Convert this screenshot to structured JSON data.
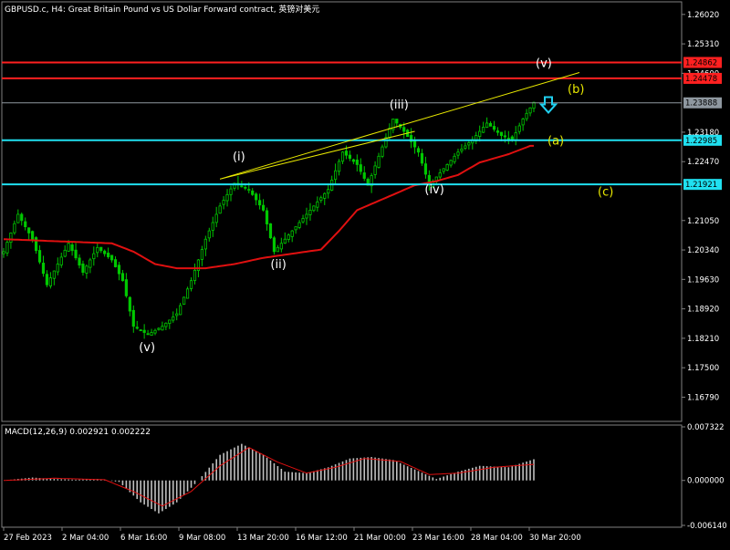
{
  "window": {
    "title": "GBPUSD.c, H4:  Great Britain Pound vs US Dollar Forward contract, 英镑对美元"
  },
  "colors": {
    "background": "#000000",
    "bull_candle": "#00c800",
    "bear_candle": "#00c800",
    "moving_average": "#e01010",
    "resistance_line": "#ff2020",
    "support_line": "#20e0f0",
    "current_price_line": "#8f98a0",
    "trendline": "#e8e800",
    "wave_white": "#ffffff",
    "wave_yellow": "#e8e800",
    "arrow": "#20d0f0",
    "macd_histogram": "#c0c0c0",
    "macd_signal": "#e01010",
    "axis_text": "#ffffff",
    "grid": "#2a2a2a"
  },
  "price_axis": {
    "labels": [
      "1.26020",
      "1.25310",
      "1.24600",
      "1.23180",
      "1.22470",
      "1.21050",
      "1.20340",
      "1.19630",
      "1.18920",
      "1.18210",
      "1.17500",
      "1.16790"
    ],
    "tags": [
      {
        "name": "resistance-upper-tag",
        "text": "1.24862",
        "price": 1.24862,
        "color": "#ff2020"
      },
      {
        "name": "resistance-lower-tag",
        "text": "1.24478",
        "price": 1.24478,
        "color": "#ff2020"
      },
      {
        "name": "current-price-tag",
        "text": "1.23888",
        "price": 1.23888,
        "color": "#8f98a0"
      },
      {
        "name": "support-upper-tag",
        "text": "1.22985",
        "price": 1.22985,
        "color": "#20e0f0"
      },
      {
        "name": "support-lower-tag",
        "text": "1.21921",
        "price": 1.21921,
        "color": "#20e0f0"
      }
    ],
    "min": 1.1625,
    "max": 1.2628
  },
  "time_axis": {
    "labels": [
      "27 Feb 2023",
      "2 Mar 04:00",
      "6 Mar 16:00",
      "9 Mar 08:00",
      "13 Mar 20:00",
      "16 Mar 12:00",
      "21 Mar 00:00",
      "23 Mar 16:00",
      "28 Mar 04:00",
      "30 Mar 20:00"
    ]
  },
  "macd": {
    "label": "MACD(12,26,9) 0.002921 0.002222",
    "axis_labels": [
      "0.007322",
      "0.000000",
      "-0.006140"
    ],
    "min": -0.00614,
    "max": 0.007322
  },
  "annotations": {
    "wave_labels": [
      {
        "text": "(v)",
        "kind": "white",
        "anchor": "low-start"
      },
      {
        "text": "(i)",
        "kind": "white",
        "anchor": "wave-i"
      },
      {
        "text": "(ii)",
        "kind": "white",
        "anchor": "wave-ii"
      },
      {
        "text": "(iii)",
        "kind": "white",
        "anchor": "wave-iii"
      },
      {
        "text": "(iv)",
        "kind": "white",
        "anchor": "wave-iv"
      },
      {
        "text": "(v)",
        "kind": "white",
        "anchor": "wave-v"
      },
      {
        "text": "(a)",
        "kind": "yellow",
        "anchor": "proj-a"
      },
      {
        "text": "(b)",
        "kind": "yellow",
        "anchor": "proj-b"
      },
      {
        "text": "(c)",
        "kind": "yellow",
        "anchor": "proj-c"
      }
    ]
  },
  "chart_data": {
    "type": "candlestick",
    "symbol": "GBPUSD.c",
    "timeframe": "H4",
    "key_prices": {
      "resistance_upper": 1.24862,
      "resistance_lower": 1.24478,
      "current": 1.23888,
      "support_upper": 1.22985,
      "support_lower": 1.21921
    },
    "price_path_pivots": [
      {
        "bar": 0,
        "price": 1.203
      },
      {
        "bar": 4,
        "price": 1.212
      },
      {
        "bar": 8,
        "price": 1.206
      },
      {
        "bar": 12,
        "price": 1.195
      },
      {
        "bar": 18,
        "price": 1.205
      },
      {
        "bar": 22,
        "price": 1.198
      },
      {
        "bar": 26,
        "price": 1.204
      },
      {
        "bar": 30,
        "price": 1.201
      },
      {
        "bar": 33,
        "price": 1.196
      },
      {
        "bar": 36,
        "price": 1.185
      },
      {
        "bar": 40,
        "price": 1.183
      },
      {
        "bar": 44,
        "price": 1.185
      },
      {
        "bar": 48,
        "price": 1.188
      },
      {
        "bar": 52,
        "price": 1.196
      },
      {
        "bar": 56,
        "price": 1.206
      },
      {
        "bar": 60,
        "price": 1.214
      },
      {
        "bar": 64,
        "price": 1.2195
      },
      {
        "bar": 68,
        "price": 1.218
      },
      {
        "bar": 72,
        "price": 1.213
      },
      {
        "bar": 75,
        "price": 1.203
      },
      {
        "bar": 78,
        "price": 1.206
      },
      {
        "bar": 82,
        "price": 1.21
      },
      {
        "bar": 86,
        "price": 1.214
      },
      {
        "bar": 90,
        "price": 1.218
      },
      {
        "bar": 94,
        "price": 1.227
      },
      {
        "bar": 98,
        "price": 1.224
      },
      {
        "bar": 101,
        "price": 1.219
      },
      {
        "bar": 104,
        "price": 1.226
      },
      {
        "bar": 108,
        "price": 1.235
      },
      {
        "bar": 111,
        "price": 1.232
      },
      {
        "bar": 115,
        "price": 1.227
      },
      {
        "bar": 118,
        "price": 1.219
      },
      {
        "bar": 122,
        "price": 1.223
      },
      {
        "bar": 126,
        "price": 1.227
      },
      {
        "bar": 130,
        "price": 1.23
      },
      {
        "bar": 134,
        "price": 1.234
      },
      {
        "bar": 138,
        "price": 1.231
      },
      {
        "bar": 141,
        "price": 1.23
      },
      {
        "bar": 144,
        "price": 1.235
      },
      {
        "bar": 147,
        "price": 1.239
      }
    ],
    "ma_pivots": [
      {
        "bar": 0,
        "price": 1.206
      },
      {
        "bar": 15,
        "price": 1.2055
      },
      {
        "bar": 30,
        "price": 1.205
      },
      {
        "bar": 36,
        "price": 1.203
      },
      {
        "bar": 42,
        "price": 1.2
      },
      {
        "bar": 48,
        "price": 1.199
      },
      {
        "bar": 56,
        "price": 1.199
      },
      {
        "bar": 64,
        "price": 1.2
      },
      {
        "bar": 72,
        "price": 1.2015
      },
      {
        "bar": 80,
        "price": 1.2025
      },
      {
        "bar": 88,
        "price": 1.2035
      },
      {
        "bar": 93,
        "price": 1.208
      },
      {
        "bar": 98,
        "price": 1.213
      },
      {
        "bar": 106,
        "price": 1.216
      },
      {
        "bar": 114,
        "price": 1.219
      },
      {
        "bar": 120,
        "price": 1.22
      },
      {
        "bar": 126,
        "price": 1.2215
      },
      {
        "bar": 132,
        "price": 1.2245
      },
      {
        "bar": 140,
        "price": 1.2265
      },
      {
        "bar": 146,
        "price": 1.2285
      }
    ],
    "macd_hist_pivots": [
      {
        "bar": 0,
        "value": 0.0
      },
      {
        "bar": 8,
        "value": 0.0004
      },
      {
        "bar": 14,
        "value": 0.0002
      },
      {
        "bar": 20,
        "value": 0.0001
      },
      {
        "bar": 26,
        "value": 0.0002
      },
      {
        "bar": 32,
        "value": -0.0002
      },
      {
        "bar": 38,
        "value": -0.003
      },
      {
        "bar": 43,
        "value": -0.0045
      },
      {
        "bar": 48,
        "value": -0.003
      },
      {
        "bar": 54,
        "value": 0.0
      },
      {
        "bar": 60,
        "value": 0.0035
      },
      {
        "bar": 66,
        "value": 0.005
      },
      {
        "bar": 72,
        "value": 0.0035
      },
      {
        "bar": 78,
        "value": 0.0012
      },
      {
        "bar": 84,
        "value": 0.001
      },
      {
        "bar": 90,
        "value": 0.0018
      },
      {
        "bar": 96,
        "value": 0.003
      },
      {
        "bar": 102,
        "value": 0.0032
      },
      {
        "bar": 108,
        "value": 0.0028
      },
      {
        "bar": 114,
        "value": 0.0015
      },
      {
        "bar": 120,
        "value": 0.0002
      },
      {
        "bar": 126,
        "value": 0.0012
      },
      {
        "bar": 132,
        "value": 0.002
      },
      {
        "bar": 140,
        "value": 0.0018
      },
      {
        "bar": 147,
        "value": 0.0029
      }
    ],
    "macd_signal_pivots": [
      {
        "bar": 0,
        "value": 0.0
      },
      {
        "bar": 14,
        "value": 0.0003
      },
      {
        "bar": 28,
        "value": 0.0001
      },
      {
        "bar": 36,
        "value": -0.0015
      },
      {
        "bar": 44,
        "value": -0.0035
      },
      {
        "bar": 52,
        "value": -0.0015
      },
      {
        "bar": 60,
        "value": 0.002
      },
      {
        "bar": 68,
        "value": 0.0045
      },
      {
        "bar": 76,
        "value": 0.0025
      },
      {
        "bar": 84,
        "value": 0.001
      },
      {
        "bar": 92,
        "value": 0.0018
      },
      {
        "bar": 100,
        "value": 0.003
      },
      {
        "bar": 110,
        "value": 0.0026
      },
      {
        "bar": 118,
        "value": 0.0008
      },
      {
        "bar": 126,
        "value": 0.001
      },
      {
        "bar": 136,
        "value": 0.0018
      },
      {
        "bar": 147,
        "value": 0.0022
      }
    ],
    "bar_count": 148
  }
}
